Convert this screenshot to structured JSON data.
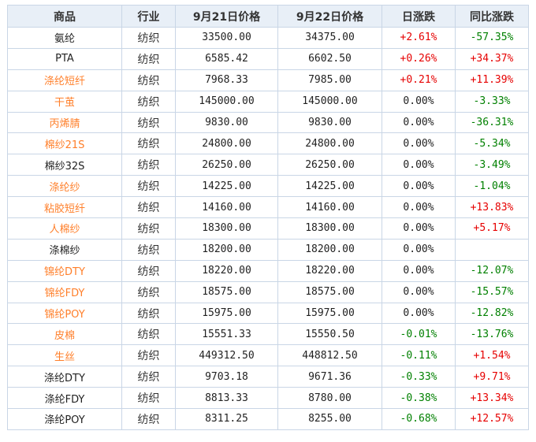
{
  "table": {
    "headers": [
      "商品",
      "行业",
      "9月21日价格",
      "9月22日价格",
      "日涨跌",
      "同比涨跌"
    ],
    "rows": [
      {
        "name": "氨纶",
        "linked": false,
        "industry": "纺织",
        "price_prev": "33500.00",
        "price_curr": "34375.00",
        "daily_change": "+2.61%",
        "yoy_change": "-57.35%"
      },
      {
        "name": "PTA",
        "linked": false,
        "industry": "纺织",
        "price_prev": "6585.42",
        "price_curr": "6602.50",
        "daily_change": "+0.26%",
        "yoy_change": "+34.37%"
      },
      {
        "name": "涤纶短纤",
        "linked": true,
        "industry": "纺织",
        "price_prev": "7968.33",
        "price_curr": "7985.00",
        "daily_change": "+0.21%",
        "yoy_change": "+11.39%"
      },
      {
        "name": "干茧",
        "linked": true,
        "industry": "纺织",
        "price_prev": "145000.00",
        "price_curr": "145000.00",
        "daily_change": "0.00%",
        "yoy_change": "-3.33%"
      },
      {
        "name": "丙烯腈",
        "linked": true,
        "industry": "纺织",
        "price_prev": "9830.00",
        "price_curr": "9830.00",
        "daily_change": "0.00%",
        "yoy_change": "-36.31%"
      },
      {
        "name": "棉纱21S",
        "linked": true,
        "industry": "纺织",
        "price_prev": "24800.00",
        "price_curr": "24800.00",
        "daily_change": "0.00%",
        "yoy_change": "-5.34%"
      },
      {
        "name": "棉纱32S",
        "linked": false,
        "industry": "纺织",
        "price_prev": "26250.00",
        "price_curr": "26250.00",
        "daily_change": "0.00%",
        "yoy_change": "-3.49%"
      },
      {
        "name": "涤纶纱",
        "linked": true,
        "industry": "纺织",
        "price_prev": "14225.00",
        "price_curr": "14225.00",
        "daily_change": "0.00%",
        "yoy_change": "-1.04%"
      },
      {
        "name": "粘胶短纤",
        "linked": true,
        "industry": "纺织",
        "price_prev": "14160.00",
        "price_curr": "14160.00",
        "daily_change": "0.00%",
        "yoy_change": "+13.83%"
      },
      {
        "name": "人棉纱",
        "linked": true,
        "industry": "纺织",
        "price_prev": "18300.00",
        "price_curr": "18300.00",
        "daily_change": "0.00%",
        "yoy_change": "+5.17%"
      },
      {
        "name": "涤棉纱",
        "linked": false,
        "industry": "纺织",
        "price_prev": "18200.00",
        "price_curr": "18200.00",
        "daily_change": "0.00%",
        "yoy_change": ""
      },
      {
        "name": "锦纶DTY",
        "linked": true,
        "industry": "纺织",
        "price_prev": "18220.00",
        "price_curr": "18220.00",
        "daily_change": "0.00%",
        "yoy_change": "-12.07%"
      },
      {
        "name": "锦纶FDY",
        "linked": true,
        "industry": "纺织",
        "price_prev": "18575.00",
        "price_curr": "18575.00",
        "daily_change": "0.00%",
        "yoy_change": "-15.57%"
      },
      {
        "name": "锦纶POY",
        "linked": true,
        "industry": "纺织",
        "price_prev": "15975.00",
        "price_curr": "15975.00",
        "daily_change": "0.00%",
        "yoy_change": "-12.82%"
      },
      {
        "name": "皮棉",
        "linked": true,
        "industry": "纺织",
        "price_prev": "15551.33",
        "price_curr": "15550.50",
        "daily_change": "-0.01%",
        "yoy_change": "-13.76%"
      },
      {
        "name": "生丝",
        "linked": true,
        "industry": "纺织",
        "price_prev": "449312.50",
        "price_curr": "448812.50",
        "daily_change": "-0.11%",
        "yoy_change": "+1.54%"
      },
      {
        "name": "涤纶DTY",
        "linked": false,
        "industry": "纺织",
        "price_prev": "9703.18",
        "price_curr": "9671.36",
        "daily_change": "-0.33%",
        "yoy_change": "+9.71%"
      },
      {
        "name": "涤纶FDY",
        "linked": false,
        "industry": "纺织",
        "price_prev": "8813.33",
        "price_curr": "8780.00",
        "daily_change": "-0.38%",
        "yoy_change": "+13.34%"
      },
      {
        "name": "涤纶POY",
        "linked": false,
        "industry": "纺织",
        "price_prev": "8311.25",
        "price_curr": "8255.00",
        "daily_change": "-0.68%",
        "yoy_change": "+12.57%"
      }
    ]
  },
  "colors": {
    "link_orange": "#ff7f2a",
    "up_red": "#e60000",
    "down_green": "#008000",
    "header_bg": "#e8eff7",
    "border": "#c9d6e6"
  }
}
